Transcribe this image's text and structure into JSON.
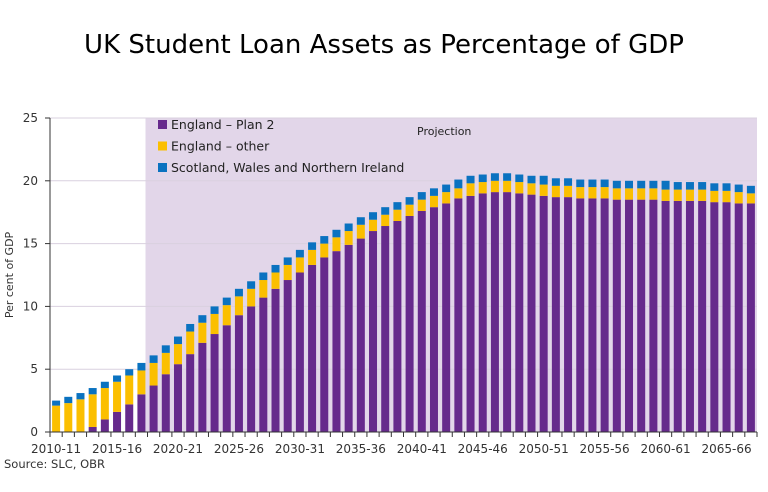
{
  "chart_data": {
    "type": "bar",
    "stacked": true,
    "title": "UK Student Loan Assets as Percentage of GDP",
    "ylabel": "Per cent of GDP",
    "xlabel": "",
    "ylim": [
      0,
      25
    ],
    "yticks": [
      0,
      5,
      10,
      15,
      20,
      25
    ],
    "grid": true,
    "legend_position": "top-left",
    "annotation": "Projection",
    "projection_start": "2018-19",
    "source": "Source: SLC, OBR",
    "xtick_labels": [
      "2010-11",
      "2015-16",
      "2020-21",
      "2025-26",
      "2030-31",
      "2035-36",
      "2040-41",
      "2045-46",
      "2050-51",
      "2055-56",
      "2060-61",
      "2065-66"
    ],
    "categories": [
      "2010-11",
      "2011-12",
      "2012-13",
      "2013-14",
      "2014-15",
      "2015-16",
      "2016-17",
      "2017-18",
      "2018-19",
      "2019-20",
      "2020-21",
      "2021-22",
      "2022-23",
      "2023-24",
      "2024-25",
      "2025-26",
      "2026-27",
      "2027-28",
      "2028-29",
      "2029-30",
      "2030-31",
      "2031-32",
      "2032-33",
      "2033-34",
      "2034-35",
      "2035-36",
      "2036-37",
      "2037-38",
      "2038-39",
      "2039-40",
      "2040-41",
      "2041-42",
      "2042-43",
      "2043-44",
      "2044-45",
      "2045-46",
      "2046-47",
      "2047-48",
      "2048-49",
      "2049-50",
      "2050-51",
      "2051-52",
      "2052-53",
      "2053-54",
      "2054-55",
      "2055-56",
      "2056-57",
      "2057-58",
      "2058-59",
      "2059-60",
      "2060-61",
      "2061-62",
      "2062-63",
      "2063-64",
      "2064-65",
      "2065-66",
      "2066-67",
      "2067-68"
    ],
    "series": [
      {
        "name": "England – Plan 2",
        "color": "#662a8c",
        "values": [
          0,
          0,
          0,
          0.4,
          1.0,
          1.6,
          2.2,
          3.0,
          3.7,
          4.6,
          5.4,
          6.2,
          7.1,
          7.8,
          8.5,
          9.3,
          10.0,
          10.7,
          11.4,
          12.1,
          12.7,
          13.3,
          13.9,
          14.4,
          14.9,
          15.4,
          16.0,
          16.4,
          16.8,
          17.2,
          17.6,
          17.9,
          18.2,
          18.6,
          18.8,
          19.0,
          19.1,
          19.1,
          19.0,
          18.9,
          18.8,
          18.7,
          18.7,
          18.6,
          18.6,
          18.6,
          18.5,
          18.5,
          18.5,
          18.5,
          18.4,
          18.4,
          18.4,
          18.4,
          18.3,
          18.3,
          18.2,
          18.2
        ]
      },
      {
        "name": "England – other",
        "color": "#fbbf00",
        "values": [
          2.1,
          2.3,
          2.6,
          2.6,
          2.5,
          2.4,
          2.3,
          1.9,
          1.8,
          1.7,
          1.6,
          1.8,
          1.6,
          1.6,
          1.6,
          1.5,
          1.4,
          1.4,
          1.3,
          1.2,
          1.2,
          1.2,
          1.1,
          1.1,
          1.1,
          1.1,
          0.9,
          0.9,
          0.9,
          0.9,
          0.9,
          0.9,
          0.9,
          0.8,
          1.0,
          0.9,
          0.9,
          0.9,
          0.9,
          0.9,
          0.9,
          0.9,
          0.9,
          0.9,
          0.9,
          0.9,
          0.9,
          0.9,
          0.9,
          0.9,
          0.9,
          0.9,
          0.9,
          0.9,
          0.9,
          0.9,
          0.9,
          0.8
        ]
      },
      {
        "name": "Scotland, Wales and Northern Ireland",
        "color": "#0a72c0",
        "values": [
          0.4,
          0.5,
          0.5,
          0.5,
          0.5,
          0.5,
          0.5,
          0.6,
          0.6,
          0.6,
          0.6,
          0.6,
          0.6,
          0.6,
          0.6,
          0.6,
          0.6,
          0.6,
          0.6,
          0.6,
          0.6,
          0.6,
          0.6,
          0.6,
          0.6,
          0.6,
          0.6,
          0.6,
          0.6,
          0.6,
          0.6,
          0.6,
          0.6,
          0.7,
          0.6,
          0.6,
          0.6,
          0.6,
          0.6,
          0.6,
          0.7,
          0.6,
          0.6,
          0.6,
          0.6,
          0.6,
          0.6,
          0.6,
          0.6,
          0.6,
          0.7,
          0.6,
          0.6,
          0.6,
          0.6,
          0.6,
          0.6,
          0.6
        ]
      }
    ],
    "projection_color": "#e2d6e9"
  }
}
